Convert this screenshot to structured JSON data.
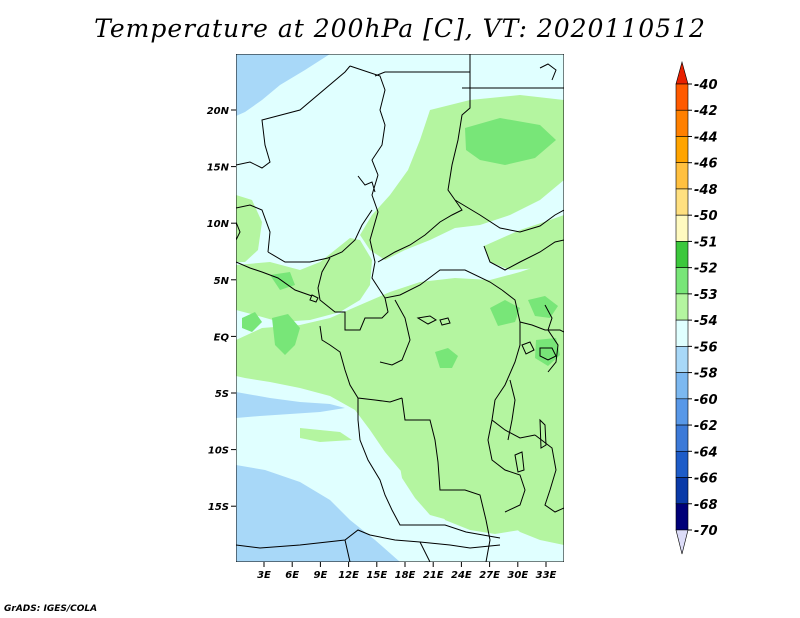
{
  "title": "Temperature at 200hPa [C], VT: 2020110512",
  "credit": "GrADS: IGES/COLA",
  "lat_ticks": [
    "20N",
    "15N",
    "10N",
    "5N",
    "EQ",
    "5S",
    "10S",
    "15S"
  ],
  "lon_ticks": [
    "3E",
    "6E",
    "9E",
    "12E",
    "15E",
    "18E",
    "21E",
    "24E",
    "27E",
    "30E",
    "33E"
  ],
  "colorbar": {
    "labels": [
      "-40",
      "-42",
      "-44",
      "-46",
      "-48",
      "-50",
      "-51",
      "-52",
      "-53",
      "-54",
      "-56",
      "-58",
      "-60",
      "-62",
      "-64",
      "-66",
      "-68",
      "-70"
    ],
    "colors": [
      "#ff3300",
      "#ff5a00",
      "#ff8000",
      "#ffa400",
      "#ffc040",
      "#ffe080",
      "#fffac0",
      "#3cc83c",
      "#78e678",
      "#b4f5a0",
      "#e0ffff",
      "#a8d8f8",
      "#7cb8f0",
      "#5898e8",
      "#3c7ad8",
      "#1e5cc8",
      "#0a3aa8",
      "#000078",
      "#d8d8f8"
    ],
    "top_arrow_color": "#e82000",
    "bottom_arrow_color": "#dcdcf8"
  }
}
